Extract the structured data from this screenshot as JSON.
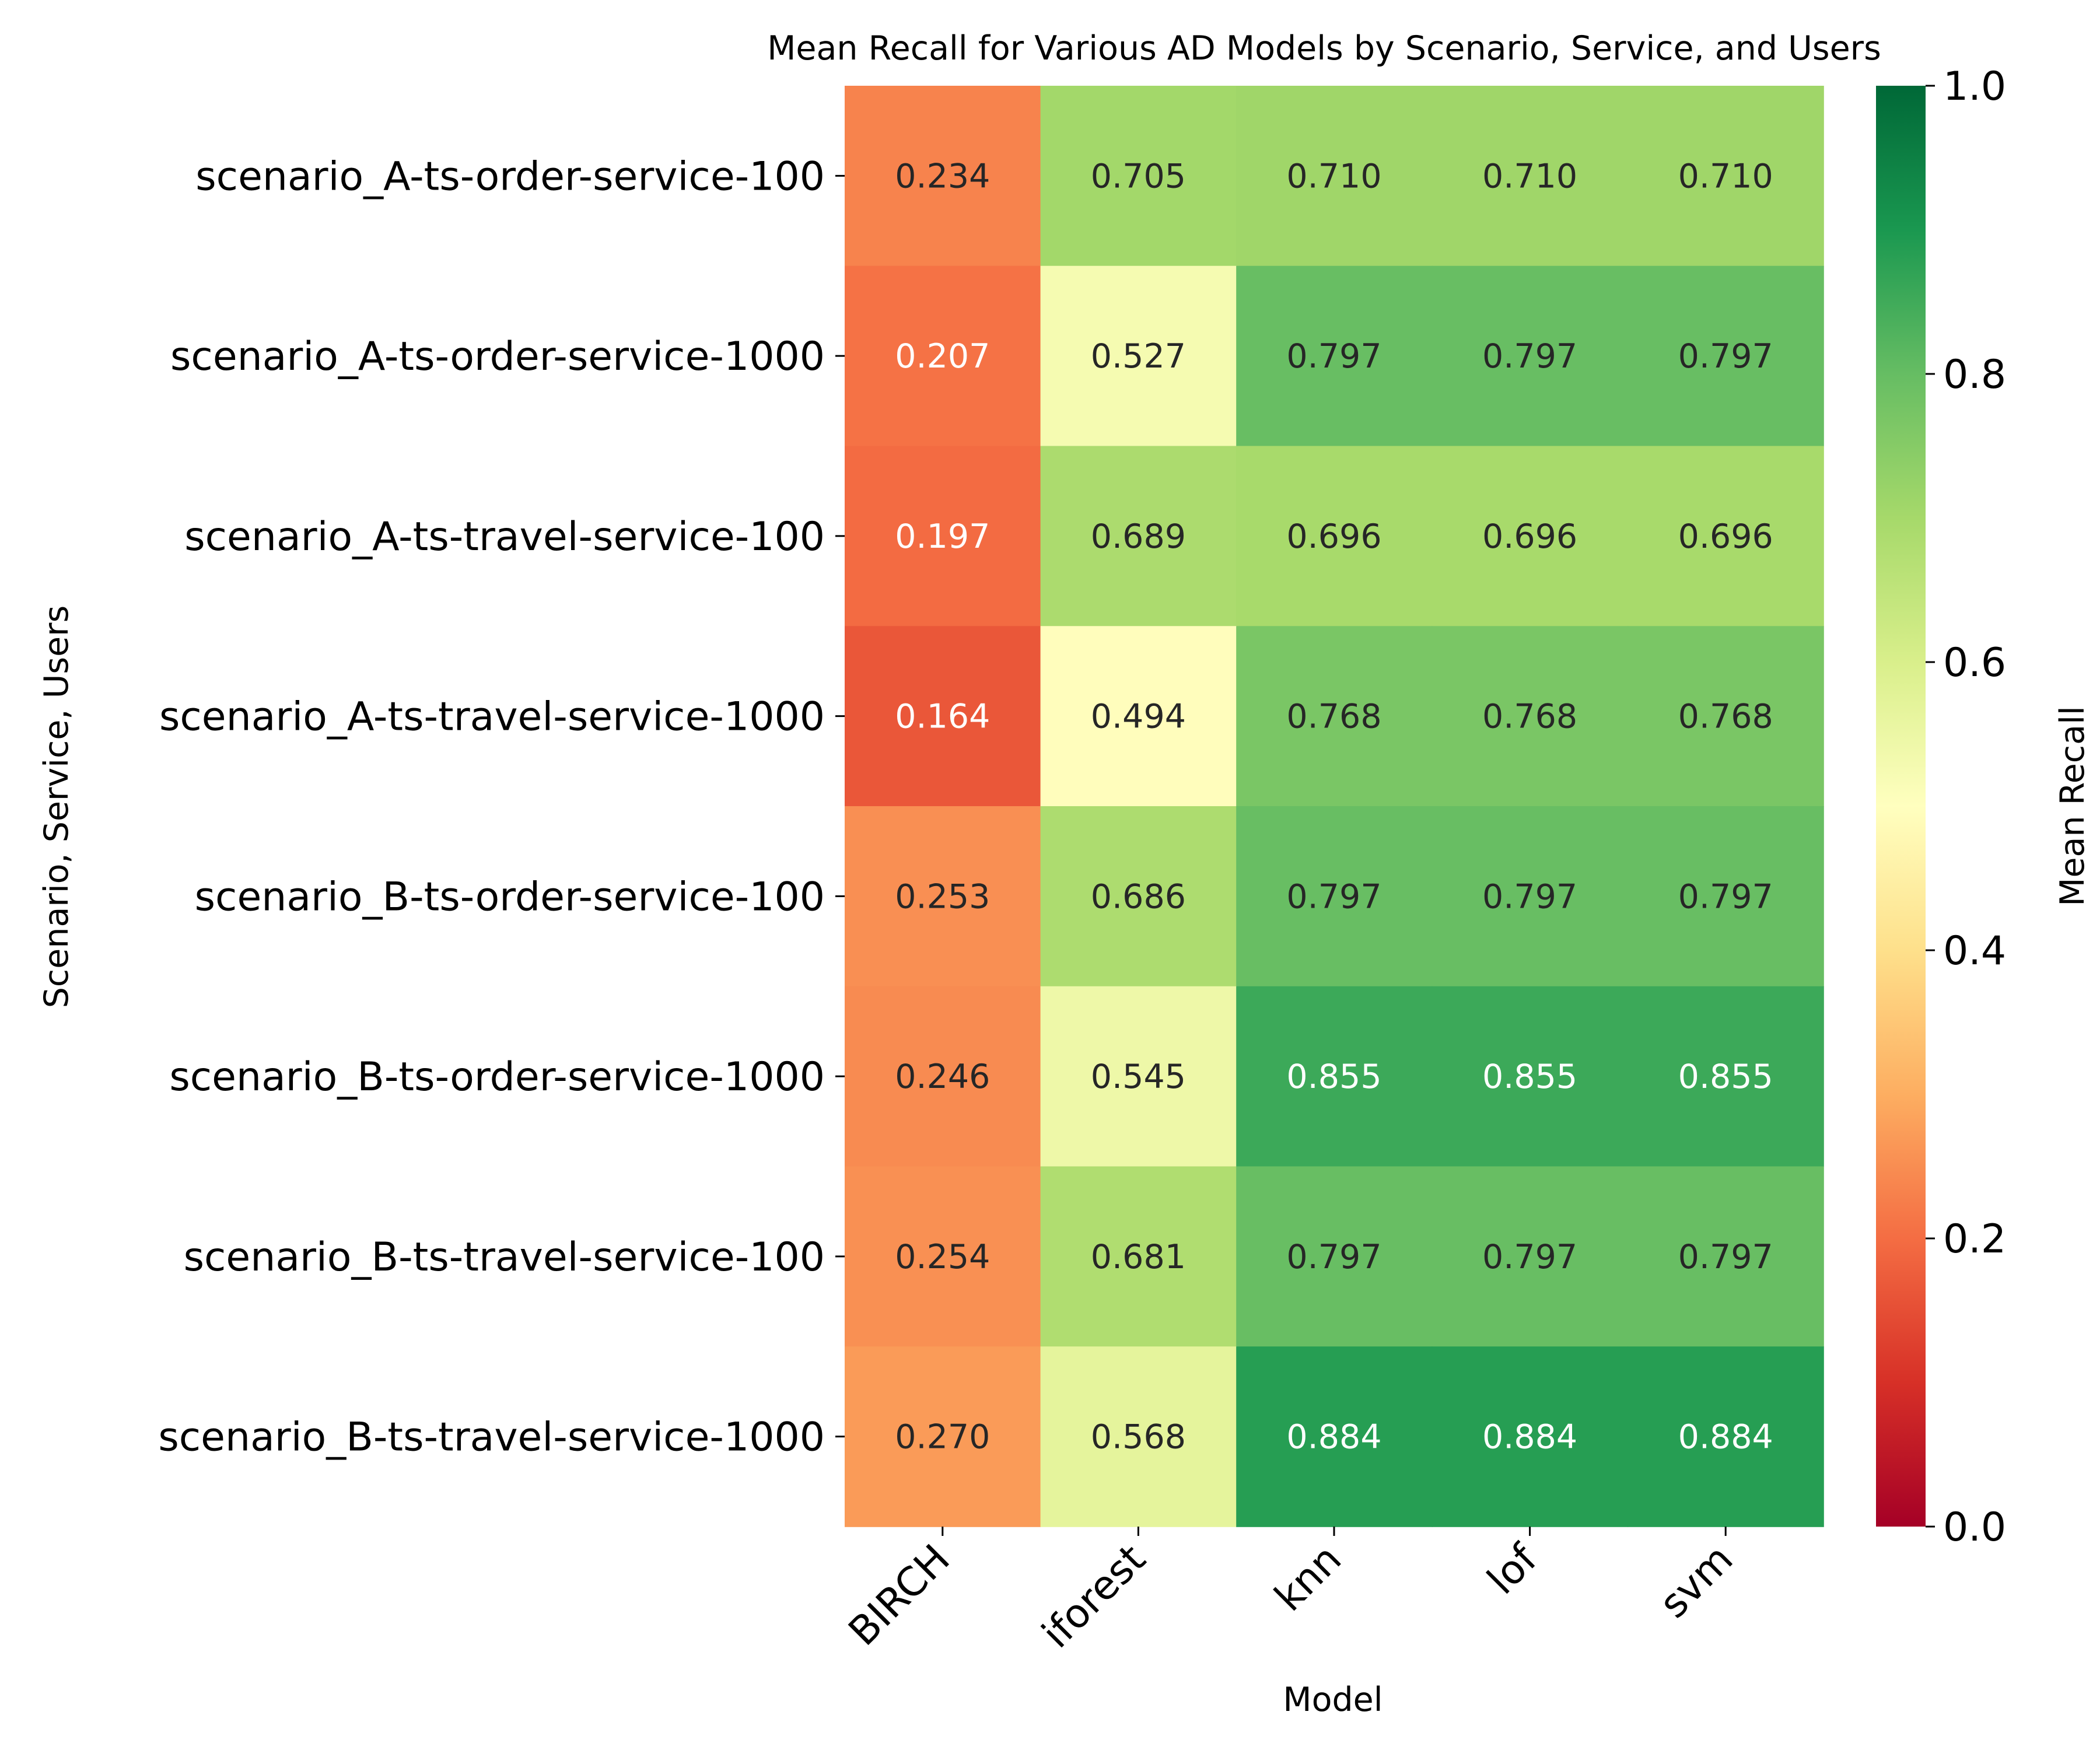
{
  "chart_data": {
    "type": "heatmap",
    "title": "Mean Recall for Various AD Models by Scenario, Service, and Users",
    "xlabel": "Model",
    "ylabel": "Scenario, Service, Users",
    "colorbar_label": "Mean Recall",
    "colormap": "RdYlGn",
    "vmin": 0.0,
    "vmax": 1.0,
    "colorbar_ticks": [
      "0.0",
      "0.2",
      "0.4",
      "0.6",
      "0.8",
      "1.0"
    ],
    "x_categories": [
      "BIRCH",
      "iforest",
      "knn",
      "lof",
      "svm"
    ],
    "y_categories": [
      "scenario_A-ts-order-service-100",
      "scenario_A-ts-order-service-1000",
      "scenario_A-ts-travel-service-100",
      "scenario_A-ts-travel-service-1000",
      "scenario_B-ts-order-service-100",
      "scenario_B-ts-order-service-1000",
      "scenario_B-ts-travel-service-100",
      "scenario_B-ts-travel-service-1000"
    ],
    "values": [
      [
        0.234,
        0.705,
        0.71,
        0.71,
        0.71
      ],
      [
        0.207,
        0.527,
        0.797,
        0.797,
        0.797
      ],
      [
        0.197,
        0.689,
        0.696,
        0.696,
        0.696
      ],
      [
        0.164,
        0.494,
        0.768,
        0.768,
        0.768
      ],
      [
        0.253,
        0.686,
        0.797,
        0.797,
        0.797
      ],
      [
        0.246,
        0.545,
        0.855,
        0.855,
        0.855
      ],
      [
        0.254,
        0.681,
        0.797,
        0.797,
        0.797
      ],
      [
        0.27,
        0.568,
        0.884,
        0.884,
        0.884
      ]
    ],
    "colors": {
      "colormap_stops": [
        [
          "0.0",
          "#a50026"
        ],
        [
          "0.1",
          "#d73027"
        ],
        [
          "0.2",
          "#f46d43"
        ],
        [
          "0.3",
          "#fdae61"
        ],
        [
          "0.4",
          "#fee08b"
        ],
        [
          "0.5",
          "#ffffbf"
        ],
        [
          "0.6",
          "#d9ef8b"
        ],
        [
          "0.7",
          "#a6d96a"
        ],
        [
          "0.8",
          "#66bd63"
        ],
        [
          "0.9",
          "#1a9850"
        ],
        [
          "1.0",
          "#006837"
        ]
      ]
    }
  }
}
